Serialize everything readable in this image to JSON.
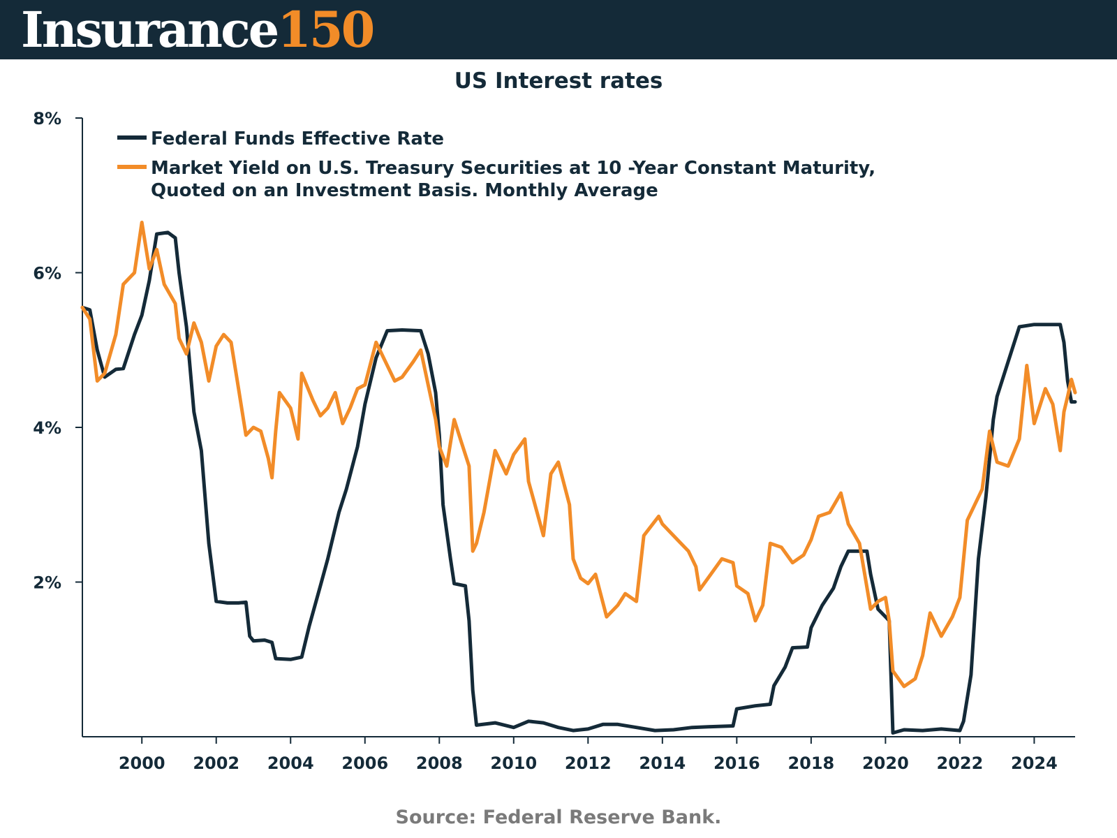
{
  "header": {
    "logo_word": "Insurance",
    "logo_number": "150",
    "background_color": "#142a38",
    "accent_color": "#f28c28"
  },
  "footer": {
    "source": "Source: Federal Reserve Bank."
  },
  "chart_data": {
    "type": "line",
    "title": "US Interest rates",
    "xlabel": "",
    "ylabel": "",
    "xlim": [
      1998.4,
      2025.1
    ],
    "ylim": [
      0,
      8
    ],
    "x_ticks": [
      2000,
      2002,
      2004,
      2006,
      2008,
      2010,
      2012,
      2014,
      2016,
      2018,
      2020,
      2022,
      2024
    ],
    "x_tick_labels": [
      "2000",
      "2002",
      "2004",
      "2006",
      "2008",
      "2010",
      "2012",
      "2014",
      "2016",
      "2018",
      "2020",
      "2022",
      "2024"
    ],
    "y_ticks": [
      2,
      4,
      6,
      8
    ],
    "y_tick_labels": [
      "2%",
      "4%",
      "6%",
      "8%"
    ],
    "grid": false,
    "legend_position": "top-left",
    "series": [
      {
        "name": "Federal Funds Effective Rate",
        "color": "#142a38",
        "points": [
          [
            1998.4,
            5.55
          ],
          [
            1998.6,
            5.52
          ],
          [
            1998.8,
            5.0
          ],
          [
            1999.0,
            4.65
          ],
          [
            1999.3,
            4.75
          ],
          [
            1999.5,
            4.76
          ],
          [
            1999.8,
            5.2
          ],
          [
            2000.0,
            5.45
          ],
          [
            2000.2,
            5.9
          ],
          [
            2000.4,
            6.5
          ],
          [
            2000.7,
            6.52
          ],
          [
            2000.9,
            6.45
          ],
          [
            2001.0,
            6.0
          ],
          [
            2001.2,
            5.3
          ],
          [
            2001.4,
            4.2
          ],
          [
            2001.6,
            3.7
          ],
          [
            2001.8,
            2.5
          ],
          [
            2002.0,
            1.75
          ],
          [
            2002.3,
            1.73
          ],
          [
            2002.6,
            1.73
          ],
          [
            2002.8,
            1.74
          ],
          [
            2002.9,
            1.3
          ],
          [
            2003.0,
            1.24
          ],
          [
            2003.3,
            1.25
          ],
          [
            2003.5,
            1.22
          ],
          [
            2003.6,
            1.01
          ],
          [
            2004.0,
            1.0
          ],
          [
            2004.3,
            1.03
          ],
          [
            2004.5,
            1.43
          ],
          [
            2004.8,
            1.95
          ],
          [
            2005.0,
            2.3
          ],
          [
            2005.3,
            2.9
          ],
          [
            2005.5,
            3.2
          ],
          [
            2005.8,
            3.75
          ],
          [
            2006.0,
            4.3
          ],
          [
            2006.3,
            4.9
          ],
          [
            2006.6,
            5.25
          ],
          [
            2007.0,
            5.26
          ],
          [
            2007.5,
            5.25
          ],
          [
            2007.7,
            4.95
          ],
          [
            2007.9,
            4.45
          ],
          [
            2008.0,
            3.9
          ],
          [
            2008.1,
            3.0
          ],
          [
            2008.3,
            2.3
          ],
          [
            2008.4,
            1.98
          ],
          [
            2008.7,
            1.95
          ],
          [
            2008.8,
            1.5
          ],
          [
            2008.9,
            0.6
          ],
          [
            2009.0,
            0.15
          ],
          [
            2009.5,
            0.18
          ],
          [
            2010.0,
            0.12
          ],
          [
            2010.4,
            0.2
          ],
          [
            2010.8,
            0.18
          ],
          [
            2011.2,
            0.12
          ],
          [
            2011.6,
            0.08
          ],
          [
            2012.0,
            0.1
          ],
          [
            2012.4,
            0.16
          ],
          [
            2012.8,
            0.16
          ],
          [
            2013.3,
            0.12
          ],
          [
            2013.8,
            0.08
          ],
          [
            2014.3,
            0.09
          ],
          [
            2014.8,
            0.12
          ],
          [
            2015.3,
            0.13
          ],
          [
            2015.9,
            0.14
          ],
          [
            2016.0,
            0.36
          ],
          [
            2016.5,
            0.4
          ],
          [
            2016.9,
            0.42
          ],
          [
            2017.0,
            0.66
          ],
          [
            2017.3,
            0.9
          ],
          [
            2017.5,
            1.15
          ],
          [
            2017.9,
            1.16
          ],
          [
            2018.0,
            1.41
          ],
          [
            2018.3,
            1.7
          ],
          [
            2018.6,
            1.92
          ],
          [
            2018.8,
            2.2
          ],
          [
            2019.0,
            2.4
          ],
          [
            2019.5,
            2.4
          ],
          [
            2019.6,
            2.1
          ],
          [
            2019.8,
            1.65
          ],
          [
            2020.0,
            1.55
          ],
          [
            2020.1,
            1.5
          ],
          [
            2020.2,
            0.05
          ],
          [
            2020.5,
            0.09
          ],
          [
            2021.0,
            0.08
          ],
          [
            2021.5,
            0.1
          ],
          [
            2022.0,
            0.08
          ],
          [
            2022.1,
            0.2
          ],
          [
            2022.3,
            0.8
          ],
          [
            2022.5,
            2.3
          ],
          [
            2022.7,
            3.1
          ],
          [
            2022.9,
            4.1
          ],
          [
            2023.0,
            4.4
          ],
          [
            2023.3,
            4.85
          ],
          [
            2023.6,
            5.3
          ],
          [
            2024.0,
            5.33
          ],
          [
            2024.7,
            5.33
          ],
          [
            2024.8,
            5.1
          ],
          [
            2024.9,
            4.6
          ],
          [
            2025.0,
            4.33
          ],
          [
            2025.1,
            4.33
          ]
        ]
      },
      {
        "name": "Market Yield on U.S. Treasury Securities at 10 -Year Constant Maturity, Quoted on an Investment Basis. Monthly Average",
        "color": "#f28c28",
        "points": [
          [
            1998.4,
            5.55
          ],
          [
            1998.6,
            5.4
          ],
          [
            1998.8,
            4.6
          ],
          [
            1999.0,
            4.7
          ],
          [
            1999.3,
            5.2
          ],
          [
            1999.5,
            5.85
          ],
          [
            1999.8,
            6.0
          ],
          [
            2000.0,
            6.65
          ],
          [
            2000.2,
            6.05
          ],
          [
            2000.4,
            6.3
          ],
          [
            2000.6,
            5.85
          ],
          [
            2000.9,
            5.6
          ],
          [
            2001.0,
            5.15
          ],
          [
            2001.2,
            4.95
          ],
          [
            2001.4,
            5.35
          ],
          [
            2001.6,
            5.1
          ],
          [
            2001.8,
            4.6
          ],
          [
            2002.0,
            5.05
          ],
          [
            2002.2,
            5.2
          ],
          [
            2002.4,
            5.1
          ],
          [
            2002.6,
            4.5
          ],
          [
            2002.8,
            3.9
          ],
          [
            2003.0,
            4.0
          ],
          [
            2003.2,
            3.95
          ],
          [
            2003.4,
            3.6
          ],
          [
            2003.5,
            3.35
          ],
          [
            2003.6,
            3.95
          ],
          [
            2003.7,
            4.45
          ],
          [
            2004.0,
            4.25
          ],
          [
            2004.2,
            3.85
          ],
          [
            2004.3,
            4.7
          ],
          [
            2004.6,
            4.35
          ],
          [
            2004.8,
            4.15
          ],
          [
            2005.0,
            4.25
          ],
          [
            2005.2,
            4.45
          ],
          [
            2005.4,
            4.05
          ],
          [
            2005.6,
            4.25
          ],
          [
            2005.8,
            4.5
          ],
          [
            2006.0,
            4.55
          ],
          [
            2006.3,
            5.1
          ],
          [
            2006.5,
            4.9
          ],
          [
            2006.8,
            4.6
          ],
          [
            2007.0,
            4.65
          ],
          [
            2007.3,
            4.85
          ],
          [
            2007.5,
            5.0
          ],
          [
            2007.7,
            4.55
          ],
          [
            2007.9,
            4.1
          ],
          [
            2008.0,
            3.75
          ],
          [
            2008.2,
            3.5
          ],
          [
            2008.4,
            4.1
          ],
          [
            2008.6,
            3.8
          ],
          [
            2008.8,
            3.5
          ],
          [
            2008.9,
            2.4
          ],
          [
            2009.0,
            2.5
          ],
          [
            2009.2,
            2.9
          ],
          [
            2009.5,
            3.7
          ],
          [
            2009.8,
            3.4
          ],
          [
            2010.0,
            3.65
          ],
          [
            2010.3,
            3.85
          ],
          [
            2010.4,
            3.3
          ],
          [
            2010.6,
            2.95
          ],
          [
            2010.8,
            2.6
          ],
          [
            2011.0,
            3.4
          ],
          [
            2011.2,
            3.55
          ],
          [
            2011.5,
            3.0
          ],
          [
            2011.6,
            2.3
          ],
          [
            2011.8,
            2.05
          ],
          [
            2012.0,
            1.98
          ],
          [
            2012.2,
            2.1
          ],
          [
            2012.5,
            1.55
          ],
          [
            2012.8,
            1.7
          ],
          [
            2013.0,
            1.85
          ],
          [
            2013.3,
            1.75
          ],
          [
            2013.5,
            2.6
          ],
          [
            2013.9,
            2.85
          ],
          [
            2014.0,
            2.75
          ],
          [
            2014.4,
            2.55
          ],
          [
            2014.7,
            2.4
          ],
          [
            2014.9,
            2.2
          ],
          [
            2015.0,
            1.9
          ],
          [
            2015.3,
            2.1
          ],
          [
            2015.6,
            2.3
          ],
          [
            2015.9,
            2.25
          ],
          [
            2016.0,
            1.95
          ],
          [
            2016.3,
            1.85
          ],
          [
            2016.5,
            1.5
          ],
          [
            2016.7,
            1.7
          ],
          [
            2016.9,
            2.5
          ],
          [
            2017.2,
            2.45
          ],
          [
            2017.5,
            2.25
          ],
          [
            2017.8,
            2.35
          ],
          [
            2018.0,
            2.55
          ],
          [
            2018.2,
            2.85
          ],
          [
            2018.5,
            2.9
          ],
          [
            2018.8,
            3.15
          ],
          [
            2019.0,
            2.75
          ],
          [
            2019.3,
            2.5
          ],
          [
            2019.6,
            1.65
          ],
          [
            2019.8,
            1.75
          ],
          [
            2020.0,
            1.8
          ],
          [
            2020.1,
            1.5
          ],
          [
            2020.2,
            0.85
          ],
          [
            2020.5,
            0.65
          ],
          [
            2020.8,
            0.75
          ],
          [
            2021.0,
            1.05
          ],
          [
            2021.2,
            1.6
          ],
          [
            2021.5,
            1.3
          ],
          [
            2021.8,
            1.55
          ],
          [
            2022.0,
            1.8
          ],
          [
            2022.2,
            2.8
          ],
          [
            2022.4,
            3.0
          ],
          [
            2022.6,
            3.2
          ],
          [
            2022.8,
            3.95
          ],
          [
            2023.0,
            3.55
          ],
          [
            2023.3,
            3.5
          ],
          [
            2023.6,
            3.85
          ],
          [
            2023.8,
            4.8
          ],
          [
            2024.0,
            4.05
          ],
          [
            2024.3,
            4.5
          ],
          [
            2024.5,
            4.3
          ],
          [
            2024.7,
            3.7
          ],
          [
            2024.8,
            4.2
          ],
          [
            2024.9,
            4.4
          ],
          [
            2025.0,
            4.62
          ],
          [
            2025.1,
            4.45
          ]
        ]
      }
    ]
  }
}
